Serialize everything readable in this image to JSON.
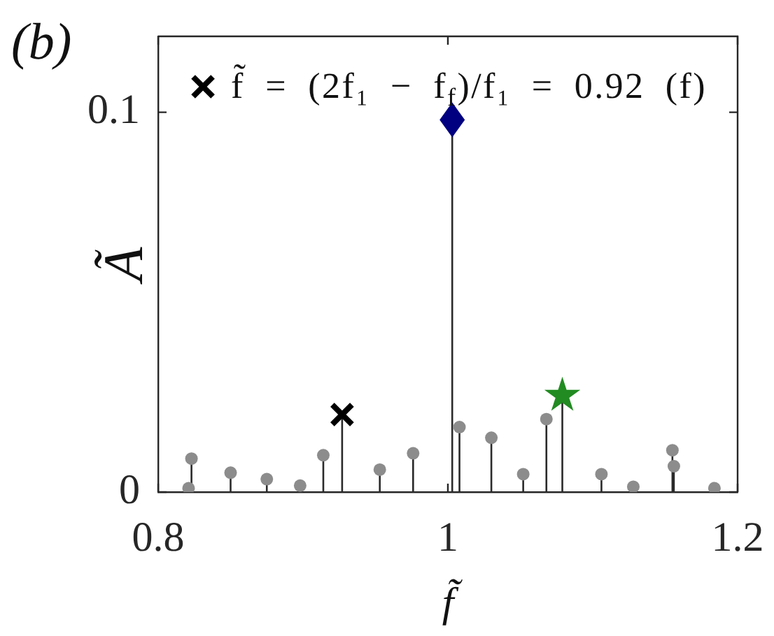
{
  "chart_data": {
    "type": "lollipop",
    "title": "(b)",
    "xlabel": "f̃",
    "ylabel": "Ã",
    "xlim": [
      0.8,
      1.2
    ],
    "ylim": [
      0,
      0.12
    ],
    "xticks": [
      0.8,
      1,
      1.2
    ],
    "yticks": [
      0,
      0.1
    ],
    "legend": "top",
    "series": [
      {
        "color": "#8c8c8c",
        "marker": "circle",
        "x": [
          0.821,
          0.823,
          0.85,
          0.875,
          0.898,
          0.914,
          0.953,
          0.976,
          1.008,
          1.03,
          1.052,
          1.068,
          1.106,
          1.128,
          1.155,
          1.156,
          1.184
        ],
        "values": [
          0.001,
          0.0088,
          0.0051,
          0.0034,
          0.0017,
          0.0097,
          0.0059,
          0.0102,
          0.0171,
          0.0143,
          0.0047,
          0.0192,
          0.0047,
          0.0014,
          0.011,
          0.0068,
          0.001
        ]
      },
      {
        "name": "f̃ = (2f₁ − f$_{f}$)/f₁ = 0.92 (f)",
        "color": "#000000",
        "marker": "cross",
        "x": [
          0.927
        ],
        "values": [
          0.0204
        ]
      },
      {
        "color": "#000080",
        "marker": "diamond",
        "x": [
          1.003
        ],
        "values": [
          0.098
        ]
      },
      {
        "color": "#228b22",
        "marker": "star",
        "x": [
          1.079
        ],
        "values": [
          0.0254
        ]
      }
    ]
  }
}
